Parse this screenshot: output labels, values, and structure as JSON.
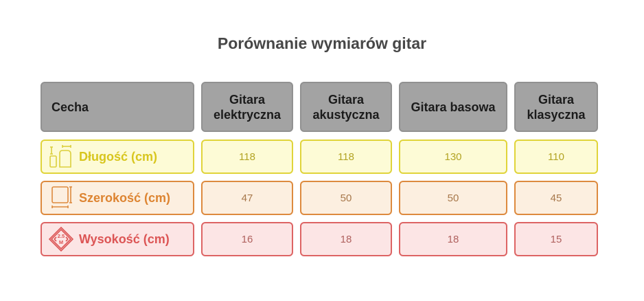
{
  "title": "Porównanie wymiarów gitar",
  "header": {
    "feature": "Cecha",
    "columns": [
      "Gitara elektryczna",
      "Gitara akustyczna",
      "Gitara basowa",
      "Gitara klasyczna"
    ]
  },
  "rows": [
    {
      "label": "Długość (cm)",
      "icon": "length-icon",
      "color": "#e0d43a",
      "values": [
        "118",
        "118",
        "130",
        "110"
      ]
    },
    {
      "label": "Szerokość (cm)",
      "icon": "width-icon",
      "color": "#dd8a3e",
      "values": [
        "47",
        "50",
        "50",
        "45"
      ]
    },
    {
      "label": "Wysokość (cm)",
      "icon": "height-sign-icon",
      "icon_text": [
        "2.5",
        "M"
      ],
      "color": "#dd6464",
      "values": [
        "16",
        "18",
        "18",
        "15"
      ]
    }
  ]
}
